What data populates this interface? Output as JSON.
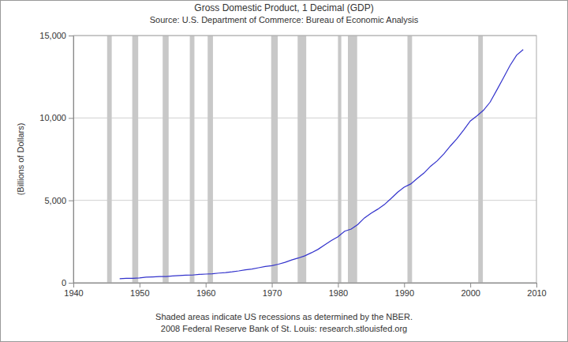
{
  "chart_data": {
    "type": "line",
    "title": "Gross Domestic Product, 1 Decimal (GDP)",
    "subtitle": "Source: U.S. Department of Commerce: Bureau of Economic Analysis",
    "y_label": "(Billions of Dollars)",
    "notes": [
      "Shaded areas indicate US recessions as determined by the NBER.",
      "2008 Federal Reserve Bank of St. Louis: research.stlouisfed.org"
    ],
    "x": [
      1947,
      1948,
      1949,
      1950,
      1951,
      1952,
      1953,
      1954,
      1955,
      1956,
      1957,
      1958,
      1959,
      1960,
      1961,
      1962,
      1963,
      1964,
      1965,
      1966,
      1967,
      1968,
      1969,
      1970,
      1971,
      1972,
      1973,
      1974,
      1975,
      1976,
      1977,
      1978,
      1979,
      1980,
      1981,
      1982,
      1983,
      1984,
      1985,
      1986,
      1987,
      1988,
      1989,
      1990,
      1991,
      1992,
      1993,
      1994,
      1995,
      1996,
      1997,
      1998,
      1999,
      2000,
      2001,
      2002,
      2003,
      2004,
      2005,
      2006,
      2007,
      2008
    ],
    "values": [
      244,
      269,
      267,
      294,
      339,
      358,
      379,
      381,
      415,
      438,
      461,
      467,
      507,
      527,
      545,
      586,
      618,
      664,
      719,
      788,
      832,
      910,
      985,
      1039,
      1127,
      1238,
      1383,
      1500,
      1638,
      1825,
      2031,
      2295,
      2563,
      2790,
      3128,
      3255,
      3537,
      3933,
      4220,
      4463,
      4740,
      5104,
      5484,
      5803,
      5996,
      6338,
      6657,
      7072,
      7398,
      7817,
      8304,
      8747,
      9268,
      9817,
      10128,
      10470,
      10961,
      11686,
      12422,
      13178,
      13808,
      14150
    ],
    "color": "#3333cc",
    "recessions": [
      [
        1945.1,
        1945.8
      ],
      [
        1948.9,
        1949.8
      ],
      [
        1953.5,
        1954.4
      ],
      [
        1957.6,
        1958.3
      ],
      [
        1960.3,
        1961.1
      ],
      [
        1969.9,
        1970.9
      ],
      [
        1973.9,
        1975.2
      ],
      [
        1980.0,
        1980.5
      ],
      [
        1981.5,
        1982.9
      ],
      [
        1990.5,
        1991.2
      ],
      [
        2001.2,
        2001.9
      ]
    ],
    "xlim": [
      1940,
      2010
    ],
    "xticks": [
      1940,
      1950,
      1960,
      1970,
      1980,
      1990,
      2000,
      2010
    ],
    "ylim": [
      0,
      15000
    ],
    "yticks": [
      0,
      {
        "value": 5000,
        "label": "5,000"
      },
      {
        "value": 10000,
        "label": "10,000"
      },
      {
        "value": 15000,
        "label": "15,000"
      }
    ],
    "grid": true
  }
}
